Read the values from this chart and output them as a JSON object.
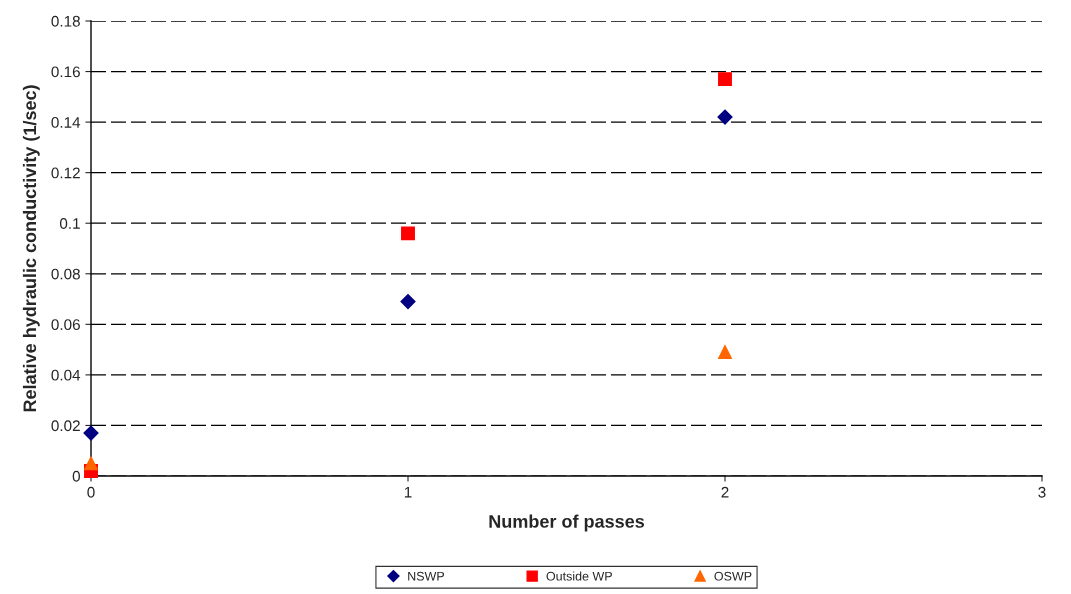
{
  "chart_data": {
    "type": "scatter",
    "xlabel": "Number of passes",
    "ylabel": "Relative hydraulic conductivity (1/sec)",
    "xlim": [
      0,
      3
    ],
    "xticks": [
      0,
      1,
      2,
      3
    ],
    "ylim": [
      0,
      0.18
    ],
    "yticks": [
      0,
      0.02,
      0.04,
      0.06,
      0.08,
      0.1,
      0.12,
      0.14,
      0.16,
      0.18
    ],
    "grid": "y",
    "legend": "bottom",
    "series": [
      {
        "name": "NSWP",
        "color": "#000080",
        "marker": "diamond",
        "x": [
          0,
          1,
          2
        ],
        "values": [
          0.017,
          0.069,
          0.142
        ]
      },
      {
        "name": "Outside WP",
        "color": "#ff0000",
        "marker": "square",
        "x": [
          0,
          1,
          2
        ],
        "values": [
          0.002,
          0.096,
          0.157
        ]
      },
      {
        "name": "OSWP",
        "color": "#ff6600",
        "marker": "triangle",
        "x": [
          0,
          2
        ],
        "values": [
          0.005,
          0.049
        ]
      }
    ]
  }
}
